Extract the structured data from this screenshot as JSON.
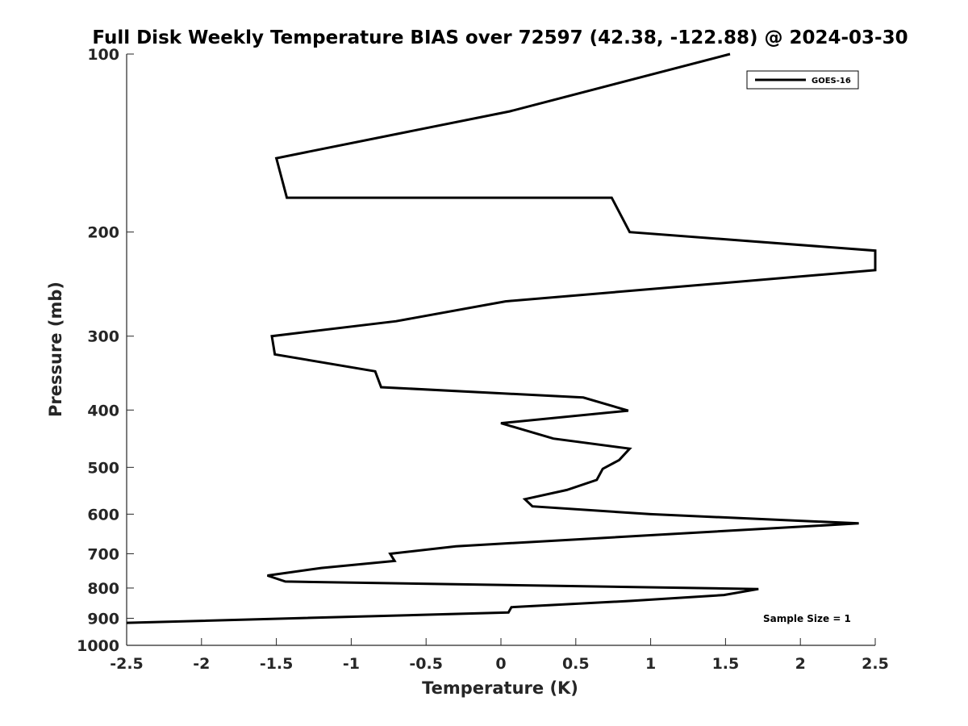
{
  "chart_data": {
    "type": "line",
    "title": "Full Disk Weekly Temperature BIAS over 72597 (42.38, -122.88) @ 2024-03-30",
    "xlabel": "Temperature (K)",
    "ylabel": "Pressure (mb)",
    "xlim": [
      -2.5,
      2.5
    ],
    "ylim": [
      100,
      1000
    ],
    "y_scale": "log",
    "y_direction": "reversed",
    "x_ticks": [
      -2.5,
      -2,
      -1.5,
      -1,
      -0.5,
      0,
      0.5,
      1,
      1.5,
      2,
      2.5
    ],
    "x_tick_labels": [
      "-2.5",
      "-2",
      "-1.5",
      "-1",
      "-0.5",
      "0",
      "0.5",
      "1",
      "1.5",
      "2",
      "2.5"
    ],
    "y_ticks": [
      100,
      200,
      300,
      400,
      500,
      600,
      700,
      800,
      900,
      1000
    ],
    "y_tick_labels": [
      "100",
      "200",
      "300",
      "400",
      "500",
      "600",
      "700",
      "800",
      "900",
      "1000"
    ],
    "grid": false,
    "legend_position": "top-right",
    "annotation": "Sample Size = 1",
    "series": [
      {
        "name": "GOES-16",
        "color": "#000000",
        "points": [
          {
            "x": 1.53,
            "y": 100
          },
          {
            "x": 0.06,
            "y": 125
          },
          {
            "x": -1.5,
            "y": 150
          },
          {
            "x": -1.43,
            "y": 175
          },
          {
            "x": 0.74,
            "y": 175
          },
          {
            "x": 0.86,
            "y": 200
          },
          {
            "x": 2.5,
            "y": 215
          },
          {
            "x": 2.5,
            "y": 232
          },
          {
            "x": 0.03,
            "y": 262
          },
          {
            "x": -0.7,
            "y": 283
          },
          {
            "x": -1.53,
            "y": 300
          },
          {
            "x": -1.51,
            "y": 322
          },
          {
            "x": -0.84,
            "y": 344
          },
          {
            "x": -0.8,
            "y": 366
          },
          {
            "x": 0.55,
            "y": 381
          },
          {
            "x": 0.85,
            "y": 401
          },
          {
            "x": 0.0,
            "y": 421
          },
          {
            "x": 0.35,
            "y": 447
          },
          {
            "x": 0.86,
            "y": 465
          },
          {
            "x": 0.79,
            "y": 486
          },
          {
            "x": 0.68,
            "y": 503
          },
          {
            "x": 0.64,
            "y": 525
          },
          {
            "x": 0.44,
            "y": 546
          },
          {
            "x": 0.16,
            "y": 566
          },
          {
            "x": 0.21,
            "y": 582
          },
          {
            "x": 1.0,
            "y": 600
          },
          {
            "x": 2.39,
            "y": 622
          },
          {
            "x": -0.3,
            "y": 680
          },
          {
            "x": -0.74,
            "y": 700
          },
          {
            "x": -0.71,
            "y": 720
          },
          {
            "x": -1.2,
            "y": 740
          },
          {
            "x": -1.56,
            "y": 762
          },
          {
            "x": -1.44,
            "y": 780
          },
          {
            "x": 1.72,
            "y": 803
          },
          {
            "x": 1.49,
            "y": 822
          },
          {
            "x": 0.87,
            "y": 841
          },
          {
            "x": 0.07,
            "y": 862
          },
          {
            "x": 0.05,
            "y": 880
          },
          {
            "x": -2.5,
            "y": 916
          }
        ]
      }
    ]
  }
}
